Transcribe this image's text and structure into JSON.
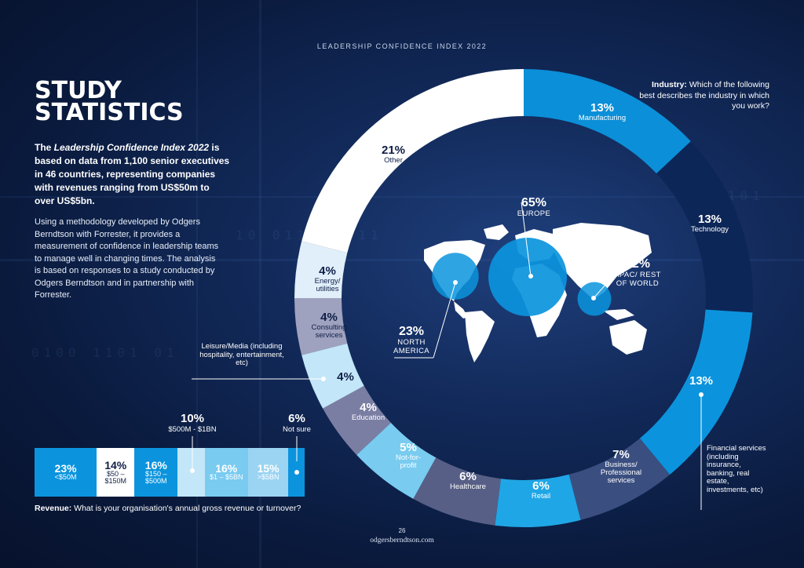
{
  "header": {
    "title": "LEADERSHIP CONFIDENCE INDEX 2022"
  },
  "heading": {
    "line1": "STUDY",
    "line2": "STATISTICS"
  },
  "intro": {
    "bold_pre": "The ",
    "bold_italic": "Leadership Confidence Index 2022",
    "bold_post": " is based on data from 1,100 senior executives in 46 countries, representing companies with revenues ranging from US$50m to over US$5bn.",
    "body": "Using a methodology developed by Odgers Berndtson with Forrester, it provides a measurement of confidence in leadership teams to manage well in changing times. The analysis is based on responses to a study conducted by Odgers Berndtson and in partnership with Forrester."
  },
  "industry_question": {
    "label": "Industry:",
    "text": " Which of the following best describes the industry in which you work?"
  },
  "revenue_question": {
    "label": "Revenue:",
    "text": " What is your organisation's annual gross revenue or turnover?"
  },
  "footer": {
    "page_number": "26",
    "site": "odgersberndtson.com"
  },
  "colors": {
    "background": "#0c1f47",
    "accent_blue": "#0b94dd",
    "navy": "#0e2a66",
    "light_blue": "#bfe3f7",
    "white": "#ffffff"
  },
  "chart_data": [
    {
      "type": "pie",
      "subtype": "donut",
      "question": "Industry",
      "categories": [
        "Manufacturing",
        "Technology",
        "Financial services (including insurance, banking, real estate, investments, etc)",
        "Business/ Professional services",
        "Retail",
        "Healthcare",
        "Not-for-profit",
        "Education",
        "Leisure/Media (including hospitality, entertainment, etc)",
        "Consulting services",
        "Energy/ utilities",
        "Other"
      ],
      "values": [
        13,
        13,
        13,
        7,
        6,
        6,
        5,
        4,
        4,
        4,
        4,
        21
      ],
      "value_labels": [
        "13%",
        "13%",
        "13%",
        "7%",
        "6%",
        "6%",
        "5%",
        "4%",
        "4%",
        "4%",
        "4%",
        "21%"
      ],
      "display_names": [
        "Manufacturing",
        "Technology",
        "",
        "Business/ Professional services",
        "Retail",
        "Healthcare",
        "Not-for- profit",
        "Education",
        "",
        "Consulting services",
        "Energy/ utilities",
        "Other"
      ],
      "colors": [
        "#0b8fd8",
        "#0d2658",
        "#0b94dd",
        "#3a4e80",
        "#1fa6e6",
        "#575f86",
        "#79cbf0",
        "#7b7ea3",
        "#c3e6f8",
        "#9fa2bf",
        "#e1effa",
        "#ffffff"
      ],
      "side_labels": {
        "financial": "Financial services (including insurance, banking, real estate, investments, etc)",
        "leisure": "Leisure/Media (including hospitality, entertainment, etc)"
      }
    },
    {
      "type": "bar",
      "subtype": "stacked-horizontal",
      "question": "Revenue",
      "categories": [
        "<$50M",
        "$50 – $150M",
        "$150 – $500M",
        "$500M - $1BN",
        "$1 – $5BN",
        ">$5BN",
        "Not sure"
      ],
      "values": [
        23,
        14,
        16,
        10,
        16,
        15,
        6
      ],
      "value_labels": [
        "23%",
        "14%",
        "16%",
        "10%",
        "16%",
        "15%",
        "6%"
      ],
      "colors": [
        "#0b94dd",
        "#ffffff",
        "#0b94dd",
        "#c3e6f8",
        "#79cbf0",
        "#9bd4f2",
        "#0b94dd"
      ]
    },
    {
      "type": "bubble-map",
      "question": "Region",
      "categories": [
        "EUROPE",
        "NORTH AMERICA",
        "APAC/ REST OF WORLD"
      ],
      "values": [
        65,
        23,
        12
      ],
      "value_labels": [
        "65%",
        "23%",
        "12%"
      ]
    }
  ]
}
